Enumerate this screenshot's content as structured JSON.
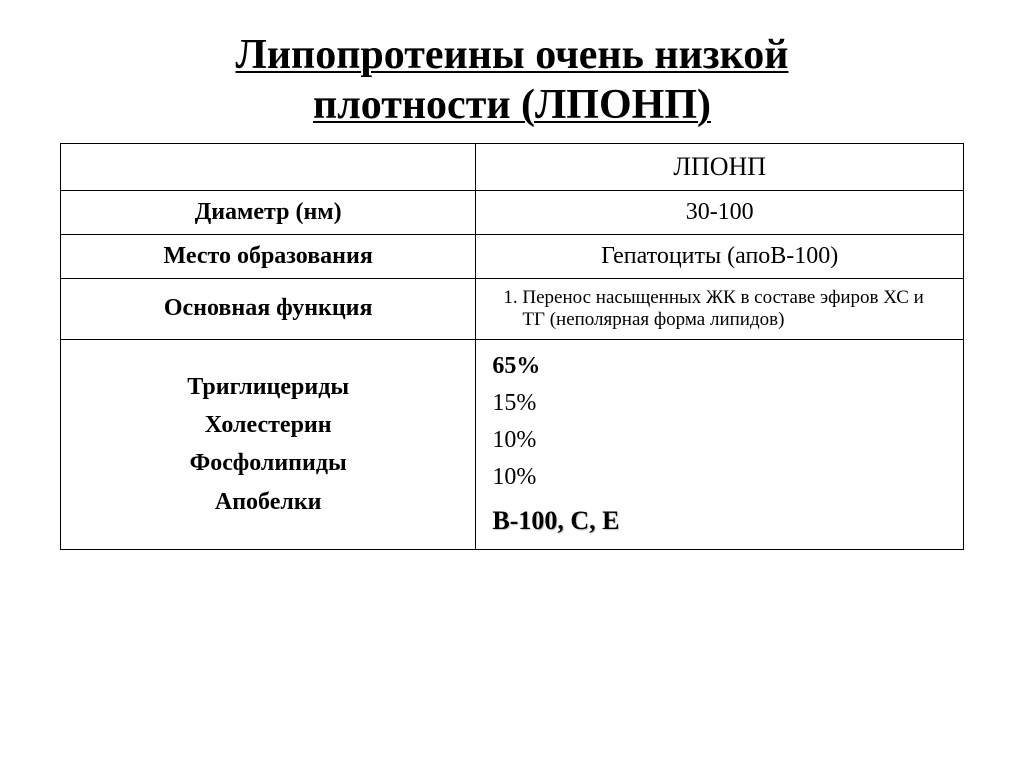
{
  "title_line1": "Липопротеины очень низкой",
  "title_line2": "плотности (ЛПОНП)",
  "table": {
    "header_right": "ЛПОНП",
    "rows": [
      {
        "label": "Диаметр (нм)",
        "value": "30-100"
      },
      {
        "label": "Место образования",
        "value": "Гепатоциты (апоВ-100)"
      }
    ],
    "function_label": "Основная функция",
    "function_item": "Перенос насыщенных ЖК в составе эфиров ХС и ТГ (неполярная форма липидов)",
    "composition": {
      "labels": [
        "Триглицериды",
        "Холестерин",
        "Фосфолипиды",
        "Апобелки"
      ],
      "values": [
        "65%",
        "15%",
        "10%",
        "10%"
      ],
      "bold_value_index": 0,
      "apoproteins": "В-100, С, Е"
    }
  },
  "style": {
    "background_color": "#ffffff",
    "border_color": "#000000",
    "title_fontsize": 42,
    "body_fontsize": 24,
    "func_fontsize": 19
  }
}
